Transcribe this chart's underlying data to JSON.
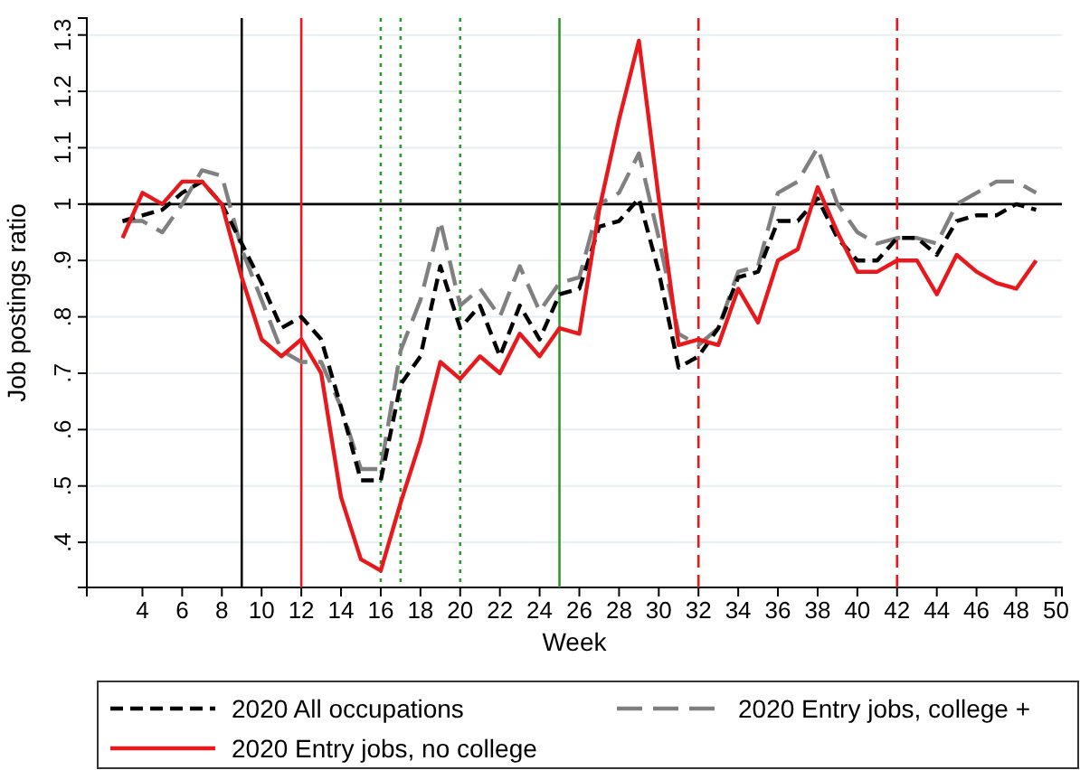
{
  "chart_data": {
    "type": "line",
    "xlabel": "Week",
    "ylabel": "Job postings ratio",
    "x": [
      3,
      4,
      5,
      6,
      7,
      8,
      9,
      10,
      11,
      12,
      13,
      14,
      15,
      16,
      17,
      18,
      19,
      20,
      21,
      22,
      23,
      24,
      25,
      26,
      27,
      28,
      29,
      30,
      31,
      32,
      33,
      34,
      35,
      36,
      37,
      38,
      39,
      40,
      41,
      42,
      43,
      44,
      45,
      46,
      47,
      48,
      49
    ],
    "series": [
      {
        "name": "2020 All occupations",
        "color": "#000000",
        "line_style": "dashed",
        "values": [
          0.97,
          0.98,
          0.99,
          1.02,
          1.04,
          1.0,
          0.93,
          0.86,
          0.78,
          0.8,
          0.76,
          0.64,
          0.51,
          0.51,
          0.68,
          0.73,
          0.89,
          0.78,
          0.82,
          0.73,
          0.82,
          0.76,
          0.84,
          0.85,
          0.96,
          0.97,
          1.01,
          0.88,
          0.71,
          0.73,
          0.78,
          0.87,
          0.88,
          0.97,
          0.97,
          1.01,
          0.94,
          0.9,
          0.9,
          0.94,
          0.94,
          0.91,
          0.97,
          0.98,
          0.98,
          1.0,
          0.99
        ]
      },
      {
        "name": "2020 Entry jobs, college +",
        "color": "#808080",
        "line_style": "longdash",
        "values": [
          0.97,
          0.97,
          0.95,
          1.0,
          1.06,
          1.05,
          0.92,
          0.83,
          0.74,
          0.72,
          0.72,
          0.64,
          0.53,
          0.53,
          0.74,
          0.83,
          0.97,
          0.82,
          0.85,
          0.8,
          0.89,
          0.81,
          0.86,
          0.87,
          1.0,
          1.02,
          1.09,
          0.94,
          0.77,
          0.75,
          0.78,
          0.88,
          0.89,
          1.02,
          1.04,
          1.1,
          1.0,
          0.95,
          0.93,
          0.94,
          0.94,
          0.93,
          1.0,
          1.02,
          1.04,
          1.04,
          1.02
        ]
      },
      {
        "name": "2020 Entry jobs, no college",
        "color": "#e8191c",
        "line_style": "solid",
        "values": [
          0.94,
          1.02,
          1.0,
          1.04,
          1.04,
          1.0,
          0.87,
          0.76,
          0.73,
          0.76,
          0.7,
          0.48,
          0.37,
          0.35,
          0.47,
          0.58,
          0.72,
          0.69,
          0.73,
          0.7,
          0.77,
          0.73,
          0.78,
          0.77,
          0.99,
          1.15,
          1.29,
          1.01,
          0.75,
          0.76,
          0.75,
          0.85,
          0.79,
          0.9,
          0.92,
          1.03,
          0.95,
          0.88,
          0.88,
          0.9,
          0.9,
          0.84,
          0.91,
          0.88,
          0.86,
          0.85,
          0.9
        ]
      }
    ],
    "xlim": [
      1.2,
      50.3
    ],
    "xticks": [
      4,
      6,
      8,
      10,
      12,
      14,
      16,
      18,
      20,
      22,
      24,
      26,
      28,
      30,
      32,
      34,
      36,
      38,
      40,
      42,
      44,
      46,
      48,
      50
    ],
    "ylim": [
      0.32,
      1.33
    ],
    "yticks": [
      {
        "value": 0.4,
        "label": ".4"
      },
      {
        "value": 0.5,
        "label": ".5"
      },
      {
        "value": 0.6,
        "label": ".6"
      },
      {
        "value": 0.7,
        "label": ".7"
      },
      {
        "value": 0.8,
        "label": ".8"
      },
      {
        "value": 0.9,
        "label": ".9"
      },
      1,
      1.1,
      1.2,
      1.3
    ],
    "grid": "y",
    "legend": "bottom",
    "ref_lines": [
      {
        "axis": "y",
        "value": 1,
        "color": "#000000",
        "line_style": "solid"
      },
      {
        "axis": "x",
        "value": 9,
        "color": "#000000",
        "line_style": "solid"
      },
      {
        "axis": "x",
        "value": 12,
        "color": "#e8191c",
        "line_style": "solid"
      },
      {
        "axis": "x",
        "value": 16,
        "color": "#2e9a2e",
        "line_style": "dotted"
      },
      {
        "axis": "x",
        "value": 17,
        "color": "#2e9a2e",
        "line_style": "dotted"
      },
      {
        "axis": "x",
        "value": 20,
        "color": "#2e9a2e",
        "line_style": "dotted"
      },
      {
        "axis": "x",
        "value": 25,
        "color": "#2e9a2e",
        "line_style": "solid"
      },
      {
        "axis": "x",
        "value": 32,
        "color": "#e8191c",
        "line_style": "dashed"
      },
      {
        "axis": "x",
        "value": 42,
        "color": "#e8191c",
        "line_style": "dashed"
      }
    ]
  }
}
